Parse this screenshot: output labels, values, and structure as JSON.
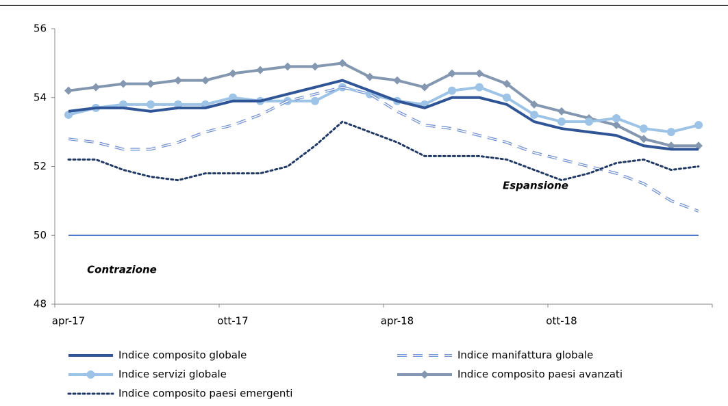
{
  "chart_data": {
    "type": "line",
    "categories": [
      "apr-17",
      null,
      null,
      null,
      null,
      null,
      "ott-17",
      null,
      null,
      null,
      null,
      null,
      "apr-18",
      null,
      null,
      null,
      null,
      null,
      "ott-18",
      null,
      null,
      null,
      null,
      null
    ],
    "series": [
      {
        "name": "Indice composito globale",
        "color": "#2f5597",
        "style": "solid",
        "marker": "none",
        "values": [
          53.6,
          53.7,
          53.7,
          53.6,
          53.7,
          53.7,
          53.9,
          53.9,
          54.1,
          54.3,
          54.5,
          54.2,
          53.9,
          53.7,
          54.0,
          54.0,
          53.8,
          53.3,
          53.1,
          53.0,
          52.9,
          52.6,
          52.5,
          52.5
        ]
      },
      {
        "name": "Indice manifattura globale",
        "color": "#6f8fcf",
        "style": "dashed",
        "marker": "none",
        "values": [
          52.8,
          52.7,
          52.5,
          52.5,
          52.7,
          53.0,
          53.2,
          53.5,
          53.9,
          54.1,
          54.3,
          54.1,
          53.6,
          53.2,
          53.1,
          52.9,
          52.7,
          52.4,
          52.2,
          52.0,
          51.8,
          51.5,
          51.0,
          50.7
        ]
      },
      {
        "name": "Indice servizi globale",
        "color": "#9dc3e6",
        "style": "solid",
        "marker": "circle",
        "values": [
          53.5,
          53.7,
          53.8,
          53.8,
          53.8,
          53.8,
          54.0,
          53.9,
          53.9,
          53.9,
          54.3,
          54.1,
          53.9,
          53.8,
          54.2,
          54.3,
          54.0,
          53.5,
          53.3,
          53.3,
          53.4,
          53.1,
          53.0,
          53.2
        ]
      },
      {
        "name": "Indice composito paesi avanzati",
        "color": "#8497b0",
        "style": "solid",
        "marker": "diamond",
        "values": [
          54.2,
          54.3,
          54.4,
          54.4,
          54.5,
          54.5,
          54.7,
          54.8,
          54.9,
          54.9,
          55.0,
          54.6,
          54.5,
          54.3,
          54.7,
          54.7,
          54.4,
          53.8,
          53.6,
          53.4,
          53.2,
          52.8,
          52.6,
          52.6
        ]
      },
      {
        "name": "Indice composito paesi emergenti",
        "color": "#1f3864",
        "style": "dotted",
        "marker": "none",
        "values": [
          52.2,
          52.2,
          51.9,
          51.7,
          51.6,
          51.8,
          51.8,
          51.8,
          52.0,
          52.6,
          53.3,
          53.0,
          52.7,
          52.3,
          52.3,
          52.3,
          52.2,
          51.9,
          51.6,
          51.8,
          52.1,
          52.2,
          51.9,
          52.0
        ]
      }
    ],
    "reference_line": {
      "value": 50,
      "color": "#4472c4"
    },
    "annotations": [
      "Espansione",
      "Contrazione"
    ],
    "ylim": [
      48,
      56
    ],
    "yticks": [
      48,
      50,
      52,
      54,
      56
    ],
    "grid": false,
    "legend": "bottom"
  }
}
